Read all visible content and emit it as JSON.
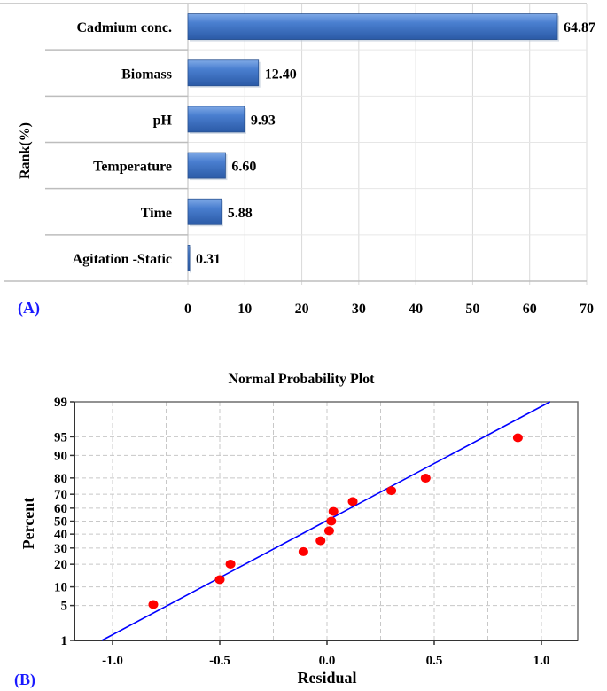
{
  "chart_data": [
    {
      "panel_label": "(A)",
      "type": "bar",
      "orientation": "horizontal",
      "title": "",
      "xlabel": "",
      "ylabel": "Rank(%)",
      "categories": [
        "Cadmium conc.",
        "Biomass",
        "pH",
        "Temperature",
        "Time",
        "Agitation -Static"
      ],
      "values": [
        64.87,
        12.4,
        9.93,
        6.6,
        5.88,
        0.31
      ],
      "value_labels": [
        "64.87",
        "12.40",
        "9.93",
        "6.60",
        "5.88",
        "0.31"
      ],
      "xlim": [
        0,
        70
      ],
      "xticks": [
        0,
        10,
        20,
        30,
        40,
        50,
        60,
        70
      ],
      "grid": true,
      "bar_color": "#3f74c4"
    },
    {
      "panel_label": "(B)",
      "type": "scatter",
      "title": "Normal Probability Plot",
      "xlabel": "Residual",
      "ylabel": "Percent",
      "xlim": [
        -1.18,
        1.17
      ],
      "xticks": [
        -1.0,
        -0.5,
        0.0,
        0.5,
        1.0
      ],
      "xtick_labels": [
        "-1.0",
        "-0.5",
        "0.0",
        "0.5",
        "1.0"
      ],
      "yscale": "normal-probability",
      "yticks": [
        1,
        5,
        10,
        20,
        30,
        40,
        50,
        60,
        70,
        80,
        90,
        95,
        99
      ],
      "ylim": [
        1,
        99
      ],
      "grid": true,
      "points": {
        "x": [
          -0.81,
          -0.5,
          -0.45,
          -0.11,
          -0.03,
          0.01,
          0.02,
          0.03,
          0.12,
          0.3,
          0.46,
          0.89
        ],
        "y": [
          5.2,
          12.7,
          20.1,
          27.6,
          35.1,
          42.5,
          50.0,
          57.5,
          64.9,
          72.4,
          79.9,
          94.8
        ],
        "color": "#ff0000"
      },
      "fit_line": {
        "x": [
          -1.05,
          1.04
        ],
        "y": [
          1,
          99
        ],
        "color": "#0000ff"
      }
    }
  ]
}
